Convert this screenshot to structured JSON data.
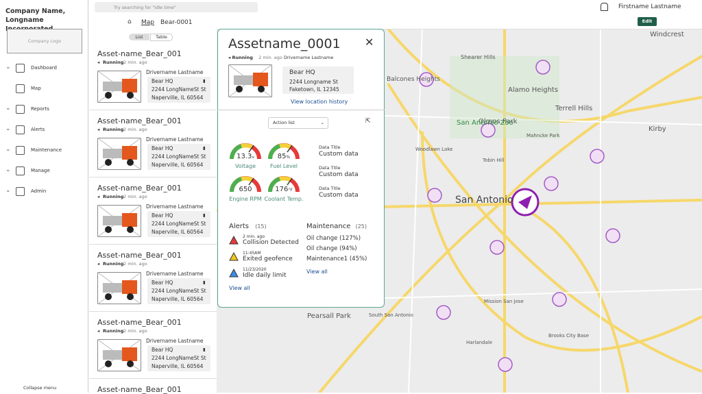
{
  "sidebar": {
    "company": "Company Name, Longname Incorporated.",
    "logo": "Company Logo",
    "nav": [
      "Dashboard",
      "Map",
      "Reports",
      "Alerts",
      "Maintenance",
      "Manage",
      "Admin"
    ],
    "collapse": "Collapse menu"
  },
  "topbar": {
    "search": "Try searching for \"idle time\"",
    "user": "Firstname Lastname"
  },
  "breadcrumb": {
    "map": "Map",
    "asset": "Bear-0001",
    "edit": "Edit"
  },
  "list": {
    "tabs": [
      "List",
      "Table"
    ],
    "assets": [
      {
        "name": "Asset-name_Bear_001",
        "status": "Running",
        "time": "2 min. ago",
        "driver": "Drivername Lastname",
        "place": "Bear HQ",
        "street": "2244 LongNameSt St",
        "city": "Naperville, IL 60564"
      },
      {
        "name": "Asset-name_Bear_001",
        "status": "Running",
        "time": "2 min. ago",
        "driver": "Drivername Lastname",
        "place": "Bear HQ",
        "street": "2244 LongNameSt St",
        "city": "Naperville, IL 60564"
      },
      {
        "name": "Asset-name_Bear_001",
        "status": "Running",
        "time": "2 min. ago",
        "driver": "Drivername Lastname",
        "place": "Bear HQ",
        "street": "2244 LongNameSt St",
        "city": "Naperville, IL 60564"
      },
      {
        "name": "Asset-name_Bear_001",
        "status": "Running",
        "time": "2 min. ago",
        "driver": "Drivername Lastname",
        "place": "Bear HQ",
        "street": "2244 LongNameSt St",
        "city": "Naperville, IL 60564"
      },
      {
        "name": "Asset-name_Bear_001",
        "status": "Running",
        "time": "2 min. ago",
        "driver": "Drivername Lastname",
        "place": "Bear HQ",
        "street": "2244 LongNameSt St",
        "city": "Naperville, IL 60564"
      },
      {
        "name": "Asset-name_Bear_001"
      }
    ]
  },
  "detail": {
    "title": "Assetname_0001",
    "status": "Running",
    "time": "2 min. ago",
    "driver": "Drivername Lastname",
    "place": "Bear HQ",
    "street": "2244 Longname St",
    "city": "Faketown, IL 12345",
    "history": "View location history",
    "action": "Action list",
    "gauges": [
      {
        "value": "13.3",
        "unit": "v",
        "label": "Voltage"
      },
      {
        "value": "85",
        "unit": "%",
        "label": "Fuel Level"
      },
      {
        "value": "650",
        "unit": "",
        "label": "Engine RPM"
      },
      {
        "value": "176",
        "unit": "°F",
        "label": "Coolant Temp."
      }
    ],
    "data": [
      {
        "title": "Data Title",
        "value": "Custom data"
      },
      {
        "title": "Data Title",
        "value": "Custom data"
      },
      {
        "title": "Data Title",
        "value": "Custom data"
      }
    ],
    "alerts": {
      "title": "Alerts",
      "count": "(15)",
      "items": [
        {
          "time": "2 min. ago",
          "text": "Collision Detected"
        },
        {
          "time": "11:45AM",
          "text": "Exited geofence"
        },
        {
          "time": "11/23/2020",
          "text": "Idle daily limit"
        }
      ],
      "link": "View all"
    },
    "maintenance": {
      "title": "Maintenance",
      "count": "(25)",
      "items": [
        "Oil change (127%)",
        "Oil change (94%)",
        "Maintenance1 (45%)"
      ],
      "link": "View all"
    }
  },
  "map": {
    "labels": [
      "Windcrest",
      "Shearer Hills",
      "Balcones Heights",
      "Alamo Heights",
      "Olmos Park",
      "Terrell Hills",
      "San Antonio Zoo",
      "Kirby",
      "Woodlawn Lake",
      "Tobin Hill",
      "Mahncke Park",
      "San Antonio",
      "Pearsall Park",
      "South San Antonio",
      "Mission San Jose",
      "Harlandale",
      "Brooks City Base"
    ]
  }
}
